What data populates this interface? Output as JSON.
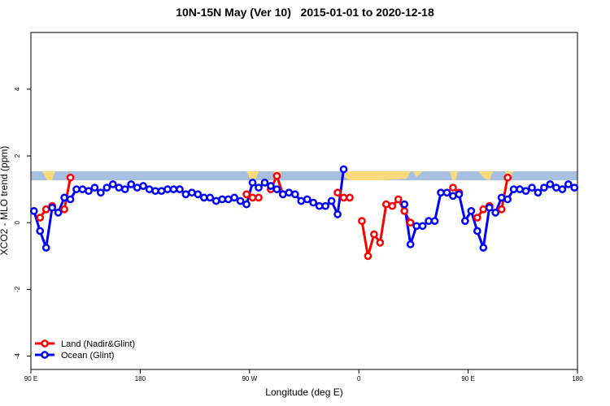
{
  "chart_data": {
    "type": "line",
    "title": "10N-15N May (Ver 10)   2015-01-01 to 2020-12-18",
    "x_label": "Longitude (deg E)",
    "y_label": "XCO2 - MLO trend (ppm)",
    "xlim": [
      90,
      540
    ],
    "ylim": [
      -4.4,
      5.7
    ],
    "xticks": [
      {
        "value": 90,
        "label": "90 E"
      },
      180,
      {
        "value": 270,
        "label": "90 W"
      },
      {
        "value": 360,
        "label": "0"
      },
      {
        "value": 450,
        "label": "90 E"
      },
      {
        "value": 540,
        "label": "180"
      }
    ],
    "yticks": [
      -4,
      -2,
      0,
      2,
      4
    ],
    "legend": "bottomleft",
    "x": [
      92.5,
      97.5,
      102.5,
      107.5,
      112.5,
      117.5,
      122.5,
      127.5,
      132.5,
      137.5,
      142.5,
      147.5,
      152.5,
      157.5,
      162.5,
      167.5,
      172.5,
      177.5,
      182.5,
      187.5,
      192.5,
      197.5,
      202.5,
      207.5,
      212.5,
      217.5,
      222.5,
      227.5,
      232.5,
      237.5,
      242.5,
      247.5,
      252.5,
      257.5,
      262.5,
      267.5,
      272.5,
      277.5,
      282.5,
      287.5,
      292.5,
      297.5,
      302.5,
      307.5,
      312.5,
      317.5,
      322.5,
      327.5,
      332.5,
      337.5,
      342.5,
      347.5,
      352.5,
      357.5,
      362.5,
      367.5,
      372.5,
      377.5,
      382.5,
      387.5,
      392.5,
      397.5,
      402.5,
      407.5,
      412.5,
      417.5,
      422.5,
      427.5,
      432.5,
      437.5,
      442.5,
      447.5,
      452.5,
      457.5,
      462.5,
      467.5,
      472.5,
      477.5,
      482.5,
      487.5,
      492.5,
      497.5,
      502.5,
      507.5,
      512.5,
      517.5,
      522.5,
      527.5,
      532.5,
      537.5
    ],
    "series": [
      {
        "name": "Land (Nadir&Glint)",
        "color": "#ff0000",
        "values": [
          null,
          0.15,
          0.4,
          0.5,
          null,
          0.4,
          1.35,
          null,
          null,
          null,
          null,
          null,
          null,
          null,
          null,
          null,
          null,
          null,
          null,
          null,
          null,
          null,
          null,
          null,
          null,
          null,
          null,
          null,
          null,
          null,
          null,
          null,
          null,
          null,
          null,
          0.85,
          0.75,
          0.75,
          null,
          1.0,
          1.4,
          0.85,
          null,
          null,
          null,
          null,
          null,
          null,
          null,
          null,
          0.9,
          0.75,
          0.75,
          null,
          0.05,
          -1.0,
          -0.35,
          -0.6,
          0.55,
          0.5,
          0.7,
          0.35,
          0.0,
          null,
          null,
          null,
          null,
          null,
          null,
          1.05,
          0.9,
          null,
          null,
          0.15,
          0.4,
          0.5,
          null,
          0.4,
          1.35,
          null,
          null,
          null,
          null,
          null,
          null,
          null,
          null,
          null,
          null,
          null
        ]
      },
      {
        "name": "Ocean (Glint)",
        "color": "#0000ff",
        "values": [
          0.35,
          -0.25,
          -0.75,
          0.45,
          0.3,
          0.75,
          0.7,
          1.0,
          1.0,
          0.95,
          1.05,
          0.9,
          1.05,
          1.15,
          1.05,
          1.0,
          1.15,
          1.05,
          1.1,
          1.0,
          0.95,
          0.95,
          1.0,
          1.0,
          1.0,
          0.85,
          0.9,
          0.85,
          0.75,
          0.75,
          0.65,
          0.7,
          0.7,
          0.75,
          0.65,
          0.55,
          1.2,
          1.05,
          1.2,
          1.1,
          1.0,
          0.85,
          0.9,
          0.85,
          0.65,
          0.7,
          0.6,
          0.5,
          0.5,
          0.65,
          0.25,
          1.6,
          null,
          null,
          null,
          null,
          null,
          null,
          null,
          null,
          null,
          0.55,
          -0.65,
          -0.1,
          -0.1,
          0.05,
          0.05,
          0.9,
          0.9,
          0.8,
          0.85,
          0.05,
          0.35,
          -0.25,
          -0.75,
          0.45,
          0.3,
          0.75,
          0.7,
          1.0,
          1.0,
          0.95,
          1.05,
          0.9,
          1.05,
          1.15,
          1.05,
          1.0,
          1.15,
          1.05
        ]
      }
    ]
  }
}
